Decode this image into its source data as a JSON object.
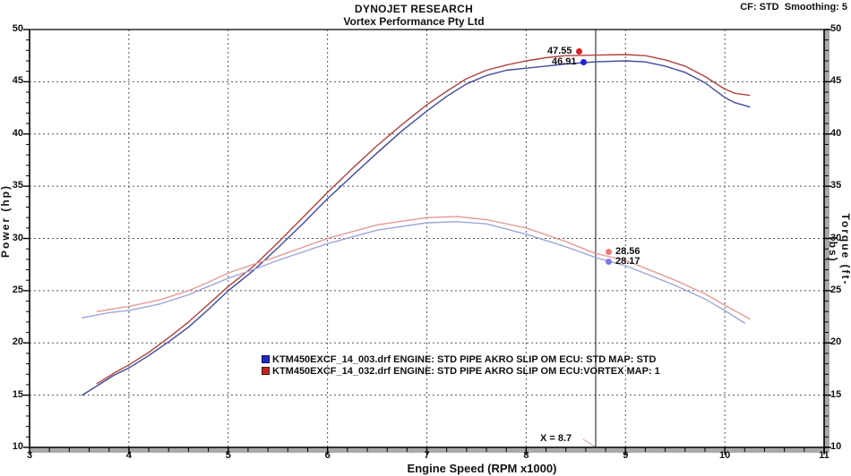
{
  "header": {
    "title": "DYNOJET RESEARCH",
    "subtitle": "Vortex Performance Pty Ltd",
    "settings": "CF: STD  Smoothing: 5"
  },
  "axes": {
    "x": {
      "label": "Engine Speed (RPM x1000)",
      "min": 3,
      "max": 11,
      "ticks": [
        3,
        4,
        5,
        6,
        7,
        8,
        9,
        10,
        11
      ],
      "minor_step": 0.2
    },
    "y_left": {
      "label": "Power (hp)",
      "min": 10,
      "max": 50,
      "ticks": [
        10,
        15,
        20,
        25,
        30,
        35,
        40,
        45,
        50
      ],
      "minor_step": 1
    },
    "y_right": {
      "label": "Torque (ft-lbs)",
      "min": 10,
      "max": 50,
      "ticks": [
        10,
        15,
        20,
        25,
        30,
        35,
        40,
        45,
        50
      ],
      "minor_step": 1
    }
  },
  "cursor": {
    "x": 8.7,
    "label": "X = 8.7"
  },
  "legend": [
    {
      "text": "KTM450EXCF_14_003.drf ENGINE: STD PIPE AKRO SLIP OM ECU: STD MAP: STD",
      "color": "#2228c8"
    },
    {
      "text": "KTM450EXCF_14_032.drf ENGINE: STD PIPE AKRO SLIP OM ECU:VORTEX MAP: 1",
      "color": "#c82222"
    }
  ],
  "chart_data": {
    "type": "line",
    "title": "DYNOJET RESEARCH",
    "subtitle": "Vortex Performance Pty Ltd",
    "xlabel": "Engine Speed (RPM x1000)",
    "ylabel_left": "Power (hp)",
    "ylabel_right": "Torque (ft-lbs)",
    "xlim": [
      3,
      11
    ],
    "ylim": [
      10,
      50
    ],
    "grid": "dashed at major ticks",
    "legend_position": "inside lower-center",
    "cursor_x": 8.7,
    "series": [
      {
        "id": "power-std",
        "name": "Power KTM450EXCF_14_003.drf (ECU: STD MAP: STD)",
        "units": "hp",
        "color": "#414a9d",
        "points": [
          [
            3.53,
            15.0
          ],
          [
            3.7,
            16.0
          ],
          [
            3.85,
            16.9
          ],
          [
            4.0,
            17.6
          ],
          [
            4.2,
            18.8
          ],
          [
            4.4,
            20.1
          ],
          [
            4.6,
            21.5
          ],
          [
            4.8,
            23.2
          ],
          [
            5.0,
            25.0
          ],
          [
            5.25,
            26.9
          ],
          [
            5.5,
            29.1
          ],
          [
            5.75,
            31.4
          ],
          [
            6.0,
            33.8
          ],
          [
            6.25,
            36.0
          ],
          [
            6.5,
            38.2
          ],
          [
            6.75,
            40.3
          ],
          [
            7.0,
            42.2
          ],
          [
            7.2,
            43.6
          ],
          [
            7.4,
            44.8
          ],
          [
            7.6,
            45.6
          ],
          [
            7.8,
            46.1
          ],
          [
            8.0,
            46.3
          ],
          [
            8.2,
            46.5
          ],
          [
            8.4,
            46.7
          ],
          [
            8.7,
            46.91
          ],
          [
            9.0,
            47.0
          ],
          [
            9.2,
            46.9
          ],
          [
            9.4,
            46.5
          ],
          [
            9.6,
            45.9
          ],
          [
            9.8,
            44.9
          ],
          [
            10.0,
            43.5
          ],
          [
            10.1,
            43.0
          ],
          [
            10.25,
            42.6
          ]
        ]
      },
      {
        "id": "power-vortex",
        "name": "Power KTM450EXCF_14_032.drf (ECU:VORTEX MAP: 1)",
        "units": "hp",
        "color": "#b2423e",
        "points": [
          [
            3.68,
            16.1
          ],
          [
            3.85,
            17.1
          ],
          [
            4.0,
            17.9
          ],
          [
            4.2,
            19.1
          ],
          [
            4.4,
            20.5
          ],
          [
            4.6,
            22.0
          ],
          [
            4.8,
            23.7
          ],
          [
            5.0,
            25.4
          ],
          [
            5.25,
            27.3
          ],
          [
            5.5,
            29.6
          ],
          [
            5.75,
            32.0
          ],
          [
            6.0,
            34.4
          ],
          [
            6.25,
            36.7
          ],
          [
            6.5,
            38.9
          ],
          [
            6.75,
            40.9
          ],
          [
            7.0,
            42.8
          ],
          [
            7.2,
            44.1
          ],
          [
            7.4,
            45.3
          ],
          [
            7.6,
            46.1
          ],
          [
            7.8,
            46.6
          ],
          [
            8.0,
            47.0
          ],
          [
            8.2,
            47.3
          ],
          [
            8.4,
            47.5
          ],
          [
            8.7,
            47.55
          ],
          [
            9.0,
            47.6
          ],
          [
            9.2,
            47.5
          ],
          [
            9.4,
            47.1
          ],
          [
            9.6,
            46.5
          ],
          [
            9.8,
            45.5
          ],
          [
            10.0,
            44.3
          ],
          [
            10.1,
            43.9
          ],
          [
            10.25,
            43.7
          ]
        ]
      },
      {
        "id": "torque-std",
        "name": "Torque KTM450EXCF_14_003.drf (ECU: STD MAP: STD)",
        "units": "ft-lbs",
        "color": "#9fa6d8",
        "points": [
          [
            3.53,
            22.4
          ],
          [
            3.8,
            22.9
          ],
          [
            4.0,
            23.1
          ],
          [
            4.3,
            23.7
          ],
          [
            4.6,
            24.6
          ],
          [
            4.8,
            25.4
          ],
          [
            5.0,
            26.2
          ],
          [
            5.25,
            27.0
          ],
          [
            5.5,
            27.9
          ],
          [
            6.0,
            29.5
          ],
          [
            6.5,
            30.8
          ],
          [
            7.0,
            31.5
          ],
          [
            7.3,
            31.6
          ],
          [
            7.6,
            31.4
          ],
          [
            8.0,
            30.4
          ],
          [
            8.4,
            29.2
          ],
          [
            8.7,
            28.17
          ],
          [
            9.0,
            27.4
          ],
          [
            9.5,
            25.5
          ],
          [
            9.8,
            24.2
          ],
          [
            10.0,
            23.1
          ],
          [
            10.2,
            21.9
          ]
        ]
      },
      {
        "id": "torque-vortex",
        "name": "Torque KTM450EXCF_14_032.drf (ECU:VORTEX MAP: 1)",
        "units": "ft-lbs",
        "color": "#e49b97",
        "points": [
          [
            3.68,
            23.0
          ],
          [
            4.0,
            23.5
          ],
          [
            4.3,
            24.1
          ],
          [
            4.6,
            25.0
          ],
          [
            4.8,
            25.8
          ],
          [
            5.0,
            26.7
          ],
          [
            5.25,
            27.5
          ],
          [
            5.5,
            28.3
          ],
          [
            6.0,
            30.0
          ],
          [
            6.5,
            31.3
          ],
          [
            7.0,
            32.0
          ],
          [
            7.3,
            32.1
          ],
          [
            7.6,
            31.8
          ],
          [
            8.0,
            31.0
          ],
          [
            8.4,
            29.7
          ],
          [
            8.7,
            28.56
          ],
          [
            9.0,
            27.9
          ],
          [
            9.5,
            26.0
          ],
          [
            9.8,
            24.7
          ],
          [
            10.0,
            23.6
          ],
          [
            10.25,
            22.3
          ]
        ]
      }
    ],
    "markers": [
      {
        "x": 8.7,
        "y": 47.55,
        "label": "47.55",
        "series": "power-vortex",
        "color": "#e02020"
      },
      {
        "x": 8.7,
        "y": 46.91,
        "label": "46.91",
        "series": "power-std",
        "color": "#2323d6"
      },
      {
        "x": 8.7,
        "y": 28.56,
        "label": "28.56",
        "series": "torque-vortex",
        "color": "#ef7b76"
      },
      {
        "x": 8.7,
        "y": 28.17,
        "label": "28.17",
        "series": "torque-std",
        "color": "#7b7be8"
      }
    ]
  }
}
